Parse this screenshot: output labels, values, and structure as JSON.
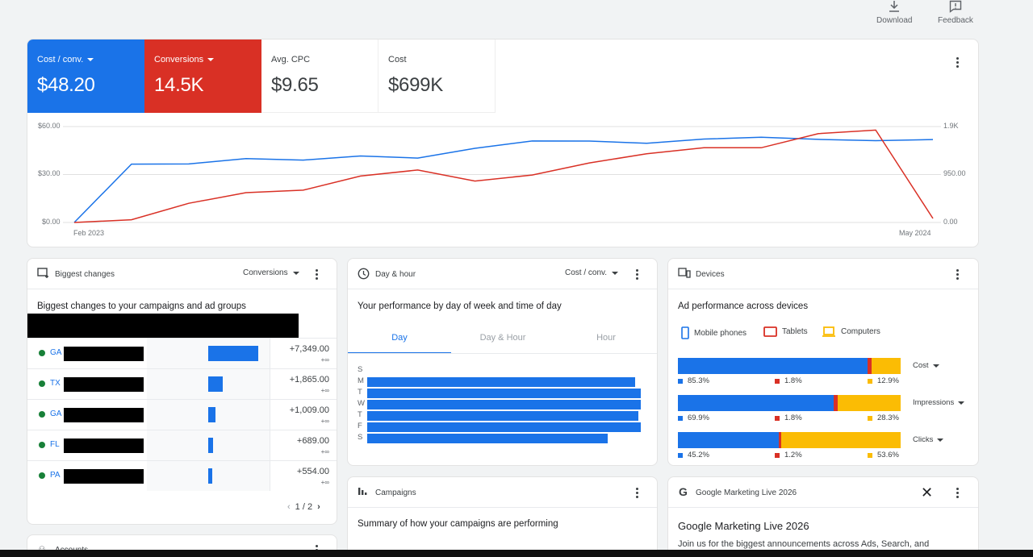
{
  "topbar": {
    "download_label": "Download",
    "feedback_label": "Feedback"
  },
  "scorecards": [
    {
      "label": "Cost / conv.",
      "value": "$48.20",
      "color": "#1a73e8"
    },
    {
      "label": "Conversions",
      "value": "14.5K",
      "color": "#d93025"
    },
    {
      "label": "Avg. CPC",
      "value": "$9.65"
    },
    {
      "label": "Cost",
      "value": "$699K"
    }
  ],
  "chart_data": {
    "type": "line",
    "x_start_label": "Feb 2023",
    "x_end_label": "May 2024",
    "y_left_ticks": [
      "$60.00",
      "$30.00",
      "$0.00"
    ],
    "y_right_ticks": [
      "1.9K",
      "950.00",
      "0.00"
    ],
    "ylim_left": [
      0,
      60
    ],
    "ylim_right": [
      0,
      1900
    ],
    "series": [
      {
        "name": "Cost / conv.",
        "color": "#1a73e8",
        "axis": "left",
        "values": [
          0,
          36.5,
          36.6,
          40,
          39,
          41.6,
          40.3,
          46.4,
          51,
          50.9,
          49.5,
          52.2,
          53.3,
          52,
          51.2,
          51.9
        ]
      },
      {
        "name": "Conversions",
        "color": "#d93025",
        "axis": "right",
        "values": [
          0,
          55,
          380,
          590,
          640,
          920,
          1040,
          820,
          940,
          1180,
          1360,
          1480,
          1480,
          1760,
          1830,
          80
        ]
      }
    ]
  },
  "biggest_changes": {
    "title": "Biggest changes",
    "metric": "Conversions",
    "subtitle": "Biggest changes to your campaigns and ad groups",
    "rows": [
      {
        "name": "GA",
        "value": "+7,349.00",
        "sub": "+∞",
        "share": 1.0
      },
      {
        "name": "TX",
        "value": "+1,865.00",
        "sub": "+∞",
        "share": 0.29
      },
      {
        "name": "GA",
        "value": "+1,009.00",
        "sub": "+∞",
        "share": 0.15
      },
      {
        "name": "FL",
        "value": "+689.00",
        "sub": "+∞",
        "share": 0.1
      },
      {
        "name": "PA",
        "value": "+554.00",
        "sub": "+∞",
        "share": 0.08
      }
    ],
    "pagination": "1 / 2"
  },
  "day_hour": {
    "title": "Day & hour",
    "metric": "Cost / conv.",
    "subtitle": "Your performance by day of week and time of day",
    "tabs": [
      "Day",
      "Day & Hour",
      "Hour"
    ],
    "active_tab": "Day",
    "days": [
      "S",
      "M",
      "T",
      "W",
      "T",
      "F",
      "S"
    ],
    "values": [
      0,
      0.98,
      1.0,
      1.0,
      0.99,
      1.0,
      0.88
    ]
  },
  "devices": {
    "title": "Devices",
    "subtitle": "Ad performance across devices",
    "legend": [
      {
        "label": "Mobile phones",
        "color": "#1a73e8"
      },
      {
        "label": "Tablets",
        "color": "#d93025"
      },
      {
        "label": "Computers",
        "color": "#fbbc04"
      }
    ],
    "metrics": [
      {
        "label": "Cost",
        "mobile": "85.3%",
        "tablet": "1.8%",
        "computer": "12.9%",
        "m": 85.3,
        "t": 1.8,
        "c": 12.9
      },
      {
        "label": "Impressions",
        "mobile": "69.9%",
        "tablet": "1.8%",
        "computer": "28.3%",
        "m": 69.9,
        "t": 1.8,
        "c": 28.3
      },
      {
        "label": "Clicks",
        "mobile": "45.2%",
        "tablet": "1.2%",
        "computer": "53.6%",
        "m": 45.2,
        "t": 1.2,
        "c": 53.6
      }
    ]
  },
  "campaigns": {
    "title": "Campaigns",
    "subtitle": "Summary of how your campaigns are performing"
  },
  "promo": {
    "title": "Google Marketing Live 2026",
    "heading": "Google Marketing Live 2026",
    "body": "Join us for the biggest announcements across Ads, Search, and"
  },
  "accounts": {
    "title": "Accounts"
  }
}
